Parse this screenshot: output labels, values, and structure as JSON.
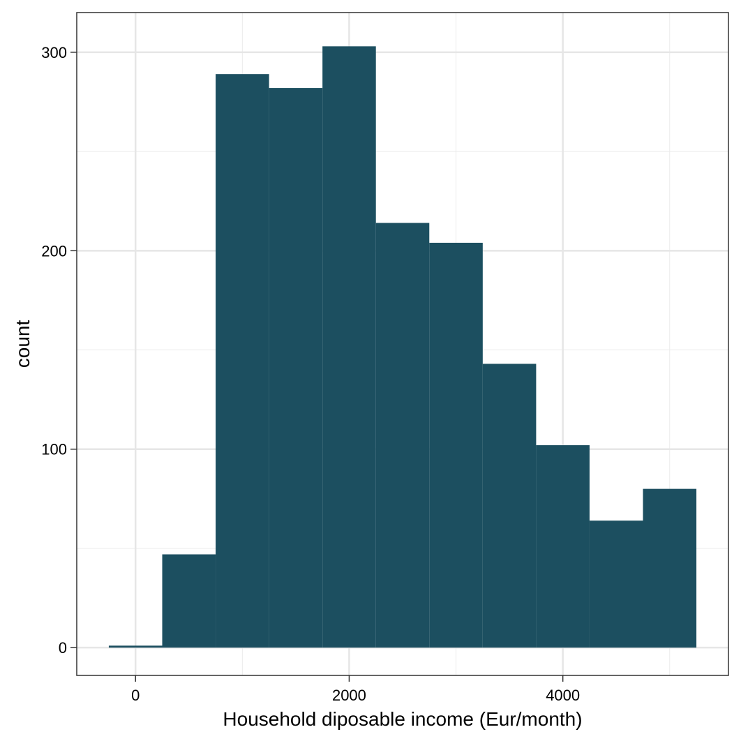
{
  "chart_data": {
    "type": "bar",
    "xlabel": "Household diposable income (Eur/month)",
    "ylabel": "count",
    "xlim": [
      -550,
      5550
    ],
    "ylim": [
      -14,
      320
    ],
    "x_ticks": [
      0,
      2000,
      4000
    ],
    "x_tick_labels": [
      "0",
      "2000",
      "4000"
    ],
    "y_ticks": [
      0,
      100,
      200,
      300
    ],
    "y_tick_labels": [
      "0",
      "100",
      "200",
      "300"
    ],
    "x_minor_gridlines": [
      1000,
      3000,
      5000
    ],
    "y_minor_gridlines": [
      50,
      150,
      250
    ],
    "grid": true,
    "bar_color": "#1c4f60",
    "bins": [
      {
        "x0": -250,
        "x1": 250,
        "count": 1
      },
      {
        "x0": 250,
        "x1": 750,
        "count": 47
      },
      {
        "x0": 750,
        "x1": 1250,
        "count": 289
      },
      {
        "x0": 1250,
        "x1": 1750,
        "count": 282
      },
      {
        "x0": 1750,
        "x1": 2250,
        "count": 303
      },
      {
        "x0": 2250,
        "x1": 2750,
        "count": 214
      },
      {
        "x0": 2750,
        "x1": 3250,
        "count": 204
      },
      {
        "x0": 3250,
        "x1": 3750,
        "count": 143
      },
      {
        "x0": 3750,
        "x1": 4250,
        "count": 102
      },
      {
        "x0": 4250,
        "x1": 4750,
        "count": 64
      },
      {
        "x0": 4750,
        "x1": 5250,
        "count": 80
      }
    ]
  }
}
